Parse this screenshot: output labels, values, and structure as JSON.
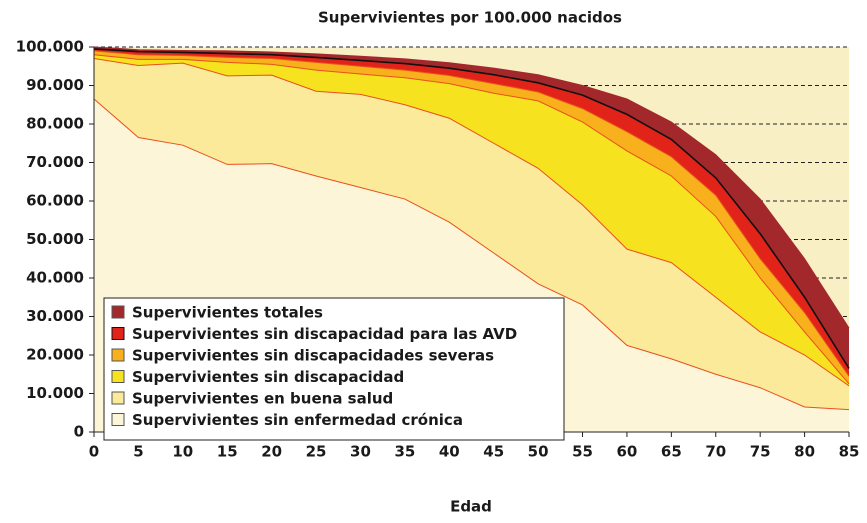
{
  "chart_data": {
    "type": "area",
    "title": "Supervivientes por 100.000 nacidos",
    "x_label": "Edad",
    "x": [
      0,
      5,
      10,
      15,
      20,
      25,
      30,
      35,
      40,
      45,
      50,
      55,
      60,
      65,
      70,
      75,
      80,
      85
    ],
    "xlim": [
      0,
      85
    ],
    "xticks": [
      0,
      5,
      10,
      15,
      20,
      25,
      30,
      35,
      40,
      45,
      50,
      55,
      60,
      65,
      70,
      75,
      80,
      85
    ],
    "ylim": [
      0,
      100000
    ],
    "yticks": [
      {
        "value": 0,
        "label": "0"
      },
      {
        "value": 10000,
        "label": "10.000"
      },
      {
        "value": 20000,
        "label": "20.000"
      },
      {
        "value": 30000,
        "label": "30.000"
      },
      {
        "value": 40000,
        "label": "40.000"
      },
      {
        "value": 50000,
        "label": "50.000"
      },
      {
        "value": 60000,
        "label": "60.000"
      },
      {
        "value": 70000,
        "label": "70.000"
      },
      {
        "value": 80000,
        "label": "80.000"
      },
      {
        "value": 90000,
        "label": "90.000"
      },
      {
        "value": 100000,
        "label": "100.000"
      }
    ],
    "grid": true,
    "legend": "lower-left",
    "series": [
      {
        "name": "Supervivientes totales",
        "color": "#a3282c",
        "line_color": "#a3282c",
        "values": [
          100000,
          99300,
          99100,
          99000,
          98700,
          98200,
          97600,
          96900,
          95900,
          94500,
          92800,
          90000,
          86500,
          80500,
          72000,
          60500,
          45000,
          27000
        ]
      },
      {
        "name": "Supervivientes sin discapacidad para las AVD",
        "color": "#e2231a",
        "line_color": "#111111",
        "values": [
          99500,
          98800,
          98600,
          98300,
          98000,
          97300,
          96500,
          95700,
          94500,
          92800,
          90700,
          87500,
          82500,
          76000,
          66000,
          51500,
          35000,
          16500
        ]
      },
      {
        "name": "Supervivientes sin discapacidades severas",
        "color": "#f8b01c",
        "line_color": "#e8501e",
        "values": [
          99000,
          98000,
          97800,
          97300,
          97000,
          96000,
          95000,
          94000,
          92600,
          90500,
          88300,
          84000,
          78000,
          71500,
          61500,
          45000,
          31000,
          14500
        ]
      },
      {
        "name": "Supervivientes sin discapacidad",
        "color": "#f6e21e",
        "line_color": "#e8501e",
        "values": [
          98000,
          96800,
          96800,
          96000,
          95500,
          94000,
          93000,
          92000,
          90500,
          88000,
          86000,
          80500,
          73000,
          66500,
          56000,
          40000,
          26000,
          12500
        ]
      },
      {
        "name": "Supervivientes en buena salud",
        "color": "#fbea9a",
        "line_color": "#e8501e",
        "values": [
          97000,
          95200,
          95800,
          92500,
          92700,
          88500,
          87700,
          85000,
          81500,
          75000,
          68500,
          59000,
          47500,
          44000,
          35000,
          26000,
          20000,
          12000
        ]
      },
      {
        "name": "Supervivientes sin enfermedad crónica",
        "color": "#fdf5d8",
        "line_color": "#e8501e",
        "values": [
          86500,
          76500,
          74500,
          69500,
          69700,
          66500,
          63500,
          60500,
          54500,
          46500,
          38500,
          33000,
          22500,
          19000,
          15000,
          11500,
          6500,
          5800
        ]
      }
    ]
  }
}
